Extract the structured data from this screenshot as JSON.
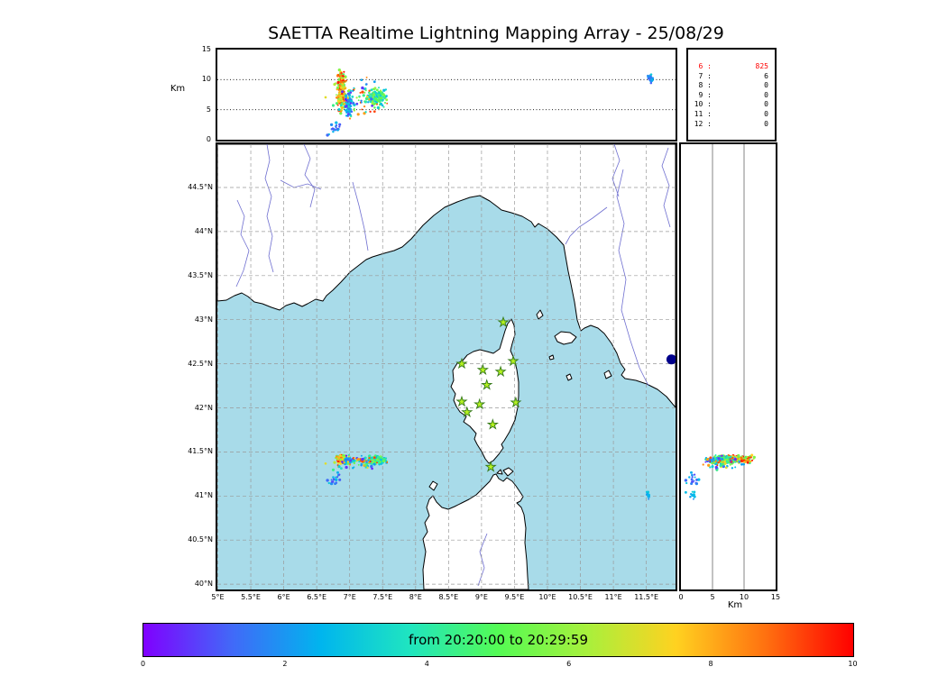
{
  "title": "SAETTA Realtime Lightning Mapping Array - 25/08/29",
  "colors": {
    "sea": "#a8dbe9",
    "land": "#ffffff",
    "coast": "#000000",
    "river": "#6f6fd0",
    "grid": "#999999",
    "star_fill": "#b5f220",
    "star_stroke": "#357a1a",
    "highlight_red": "#ff0000",
    "large_event": "#00008b"
  },
  "altitude_panel": {
    "ylabel": "Km",
    "yticks": [
      "15",
      "10",
      "5",
      "0"
    ],
    "ytick_values": [
      15,
      10,
      5,
      0
    ],
    "grid_values": [
      10,
      5
    ]
  },
  "stats": {
    "rows": [
      {
        "label": "6 :",
        "value": "825",
        "color": "#ff0000"
      },
      {
        "label": "7 :",
        "value": "6"
      },
      {
        "label": "8 :",
        "value": "0"
      },
      {
        "label": "9 :",
        "value": "0"
      },
      {
        "label": "10 :",
        "value": "0"
      },
      {
        "label": "11 :",
        "value": "0"
      },
      {
        "label": "12 :",
        "value": "0"
      }
    ]
  },
  "map": {
    "lat_ticks": [
      "44.5°N",
      "44°N",
      "43.5°N",
      "43°N",
      "42.5°N",
      "42°N",
      "41.5°N",
      "41°N",
      "40.5°N",
      "40°N"
    ],
    "lon_ticks": [
      "5°E",
      "5.5°E",
      "6°E",
      "6.5°E",
      "7°E",
      "7.5°E",
      "8°E",
      "8.5°E",
      "9°E",
      "9.5°E",
      "10°E",
      "10.5°E",
      "11°E",
      "11.5°E"
    ]
  },
  "lat_panel": {
    "xlabel": "Km",
    "xticks": [
      "0",
      "5",
      "10",
      "15"
    ],
    "xtick_values": [
      0,
      5,
      10,
      15
    ],
    "grid_values": [
      5,
      10
    ]
  },
  "colorbar": {
    "label": "from 20:20:00 to 20:29:59",
    "ticks": [
      "0",
      "2",
      "4",
      "6",
      "8",
      "10"
    ]
  },
  "chart_data": {
    "type": "scatter",
    "title": "SAETTA Realtime Lightning Mapping Array - 25/08/29",
    "date": "25/08/29",
    "time_window": {
      "from": "20:20:00",
      "to": "20:29:59"
    },
    "panels": {
      "top": {
        "x": "longitude_deg_E",
        "x_range": [
          5,
          11.94
        ],
        "y": "altitude_km",
        "y_range": [
          0,
          15
        ]
      },
      "map": {
        "x": "longitude_deg_E",
        "x_range": [
          5,
          11.94
        ],
        "y": "latitude_deg_N",
        "y_range": [
          39.94,
          44.99
        ]
      },
      "right": {
        "x": "altitude_km",
        "x_range": [
          0,
          15
        ],
        "y": "latitude_deg_N",
        "y_range": [
          39.94,
          44.99
        ]
      }
    },
    "colorbar_range": [
      0,
      10
    ],
    "palette": [
      "#8000ff",
      "#4169f8",
      "#00b5ee",
      "#1fe5c0",
      "#54fb54",
      "#a8f03c",
      "#ffd220",
      "#ff7210",
      "#ff0000"
    ],
    "station_counts": [
      [
        "6",
        825
      ],
      [
        "7",
        6
      ],
      [
        "8",
        0
      ],
      [
        "9",
        0
      ],
      [
        "10",
        0
      ],
      [
        "11",
        0
      ],
      [
        "12",
        0
      ]
    ],
    "stations_lonlat": [
      [
        9.33,
        42.97
      ],
      [
        8.7,
        42.5
      ],
      [
        9.02,
        42.43
      ],
      [
        9.29,
        42.41
      ],
      [
        9.48,
        42.53
      ],
      [
        9.08,
        42.26
      ],
      [
        8.7,
        42.07
      ],
      [
        8.97,
        42.04
      ],
      [
        9.52,
        42.06
      ],
      [
        9.17,
        41.81
      ],
      [
        8.78,
        41.95
      ],
      [
        9.14,
        41.33
      ]
    ],
    "storm_blobs": [
      {
        "name": "west-core-late",
        "lon": 6.88,
        "dlon": 0.1,
        "lat": 41.42,
        "dlat": 0.055,
        "alt": 8.3,
        "dalt": 4.3,
        "n": 240,
        "t": [
          0.45,
          1.0
        ]
      },
      {
        "name": "west-core-early",
        "lon": 6.98,
        "dlon": 0.07,
        "lat": 41.4,
        "dlat": 0.05,
        "alt": 6.0,
        "dalt": 3.0,
        "n": 80,
        "t": [
          0.0,
          0.45
        ]
      },
      {
        "name": "east-lobe",
        "lon": 7.42,
        "dlon": 0.2,
        "lat": 41.41,
        "dlat": 0.06,
        "alt": 7.0,
        "dalt": 2.2,
        "n": 150,
        "t": [
          0.25,
          0.62
        ]
      },
      {
        "name": "wide-scatter",
        "lon": 7.1,
        "dlon": 0.55,
        "lat": 41.38,
        "dlat": 0.14,
        "alt": 7.0,
        "dalt": 4.5,
        "n": 70,
        "t": [
          0.0,
          1.0
        ]
      },
      {
        "name": "low-tail",
        "lon": 6.78,
        "dlon": 0.16,
        "lat": 41.18,
        "dlat": 0.1,
        "alt": 2.0,
        "dalt": 1.6,
        "n": 18,
        "t": [
          0.08,
          0.3
        ]
      },
      {
        "name": "ne-cell",
        "lon": 11.56,
        "dlon": 0.05,
        "lat": 42.55,
        "dlat": 0.04,
        "alt": 10.2,
        "dalt": 1.1,
        "n": 28,
        "t": [
          0.12,
          0.32
        ],
        "views": [
          "top"
        ]
      },
      {
        "name": "se-sparse",
        "lon": 11.52,
        "dlon": 0.05,
        "lat": 41.02,
        "dlat": 0.09,
        "alt": 1.6,
        "dalt": 1.2,
        "n": 10,
        "t": [
          0.15,
          0.35
        ],
        "views": [
          "map",
          "right"
        ]
      }
    ],
    "large_event": {
      "lon": 11.88,
      "lat": 42.55,
      "color": "#00008b",
      "radius": 5.5
    }
  }
}
